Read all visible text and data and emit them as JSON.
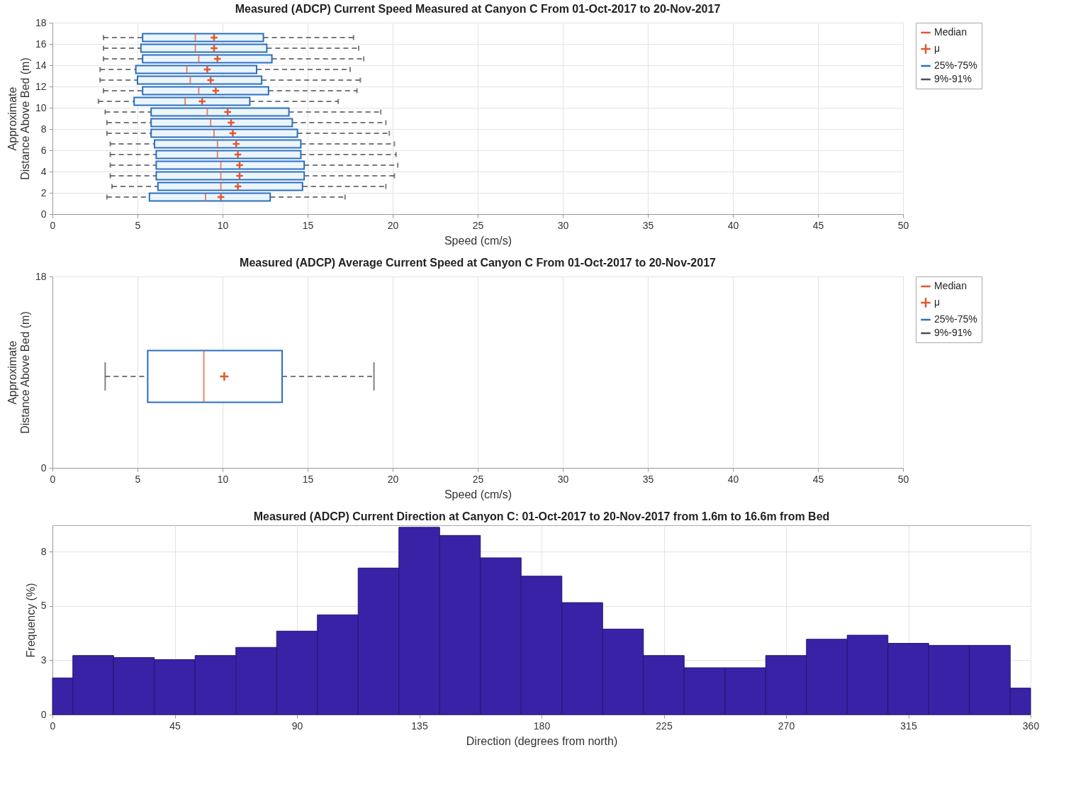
{
  "chart_data": [
    {
      "type": "box",
      "orientation": "horizontal",
      "title": "Measured (ADCP) Current Speed Measured at Canyon C From 01-Oct-2017 to 20-Nov-2017",
      "xlabel": "Speed (cm/s)",
      "ylabel": "Approximate\nDistance Above Bed (m)",
      "xlim": [
        0,
        50
      ],
      "xticks": [
        0,
        5,
        10,
        15,
        20,
        25,
        30,
        35,
        40,
        45,
        50
      ],
      "ylim": [
        0,
        18
      ],
      "yticks": [
        0,
        2,
        4,
        6,
        8,
        10,
        12,
        14,
        16,
        18
      ],
      "grid": true,
      "legend": "right",
      "annotations": [
        "Median",
        "μ",
        "9%-91%"
      ],
      "x": [
        16.6,
        15.6,
        14.6,
        13.6,
        12.6,
        11.6,
        10.6,
        9.6,
        8.6,
        7.6,
        6.6,
        5.6,
        4.6,
        3.6,
        2.6,
        1.6
      ],
      "series": [
        {
          "name": "25%-75%",
          "color": "#2b6fbf",
          "boxes": [
            {
              "low": 3.0,
              "q1": 5.3,
              "median": 8.4,
              "q3": 12.4,
              "high": 17.7,
              "mean": 9.5
            },
            {
              "low": 3.0,
              "q1": 5.2,
              "median": 8.4,
              "q3": 12.6,
              "high": 18.0,
              "mean": 9.5
            },
            {
              "low": 3.0,
              "q1": 5.3,
              "median": 8.6,
              "q3": 12.9,
              "high": 18.3,
              "mean": 9.7
            },
            {
              "low": 2.8,
              "q1": 4.9,
              "median": 7.9,
              "q3": 12.0,
              "high": 17.5,
              "mean": 9.1
            },
            {
              "low": 2.8,
              "q1": 5.0,
              "median": 8.1,
              "q3": 12.3,
              "high": 18.1,
              "mean": 9.3
            },
            {
              "low": 3.0,
              "q1": 5.3,
              "median": 8.6,
              "q3": 12.7,
              "high": 17.9,
              "mean": 9.6
            },
            {
              "low": 2.7,
              "q1": 4.8,
              "median": 7.8,
              "q3": 11.6,
              "high": 16.8,
              "mean": 8.8
            },
            {
              "low": 3.1,
              "q1": 5.8,
              "median": 9.1,
              "q3": 13.9,
              "high": 19.3,
              "mean": 10.3
            },
            {
              "low": 3.2,
              "q1": 5.8,
              "median": 9.3,
              "q3": 14.1,
              "high": 19.6,
              "mean": 10.5
            },
            {
              "low": 3.2,
              "q1": 5.8,
              "median": 9.5,
              "q3": 14.4,
              "high": 19.8,
              "mean": 10.6
            },
            {
              "low": 3.4,
              "q1": 6.0,
              "median": 9.7,
              "q3": 14.6,
              "high": 20.1,
              "mean": 10.8
            },
            {
              "low": 3.4,
              "q1": 6.1,
              "median": 9.7,
              "q3": 14.6,
              "high": 20.2,
              "mean": 10.9
            },
            {
              "low": 3.4,
              "q1": 6.1,
              "median": 9.9,
              "q3": 14.8,
              "high": 20.3,
              "mean": 11.0
            },
            {
              "low": 3.4,
              "q1": 6.1,
              "median": 9.9,
              "q3": 14.8,
              "high": 20.1,
              "mean": 11.0
            },
            {
              "low": 3.5,
              "q1": 6.2,
              "median": 9.9,
              "q3": 14.7,
              "high": 19.6,
              "mean": 10.9
            },
            {
              "low": 3.2,
              "q1": 5.7,
              "median": 9.0,
              "q3": 12.8,
              "high": 17.2,
              "mean": 9.9
            }
          ]
        }
      ]
    },
    {
      "type": "box",
      "orientation": "horizontal",
      "title": "Measured (ADCP) Average Current Speed at Canyon C From 01-Oct-2017 to 20-Nov-2017",
      "xlabel": "Speed (cm/s)",
      "ylabel": "Approximate\nDistance Above Bed (m)",
      "xlim": [
        0,
        50
      ],
      "xticks": [
        0,
        5,
        10,
        15,
        20,
        25,
        30,
        35,
        40,
        45,
        50
      ],
      "ylim": [
        0,
        18
      ],
      "yticks": [
        0,
        18
      ],
      "grid": true,
      "legend": "right",
      "annotations": [
        "Median",
        "μ",
        "9%-91%"
      ],
      "x": [
        8.6
      ],
      "series": [
        {
          "name": "25%-75%",
          "color": "#2b6fbf",
          "boxes": [
            {
              "low": 3.1,
              "q1": 5.6,
              "median": 8.9,
              "q3": 13.5,
              "high": 18.9,
              "mean": 10.1
            }
          ]
        }
      ]
    },
    {
      "type": "histogram",
      "title": "Measured (ADCP) Current Direction at Canyon C: 01-Oct-2017 to 20-Nov-2017 from 1.6m to 16.6m from Bed",
      "xlabel": "Direction (degrees from north)",
      "ylabel": "Frequency (%)",
      "color": "#3a22a6",
      "xlim": [
        0,
        360
      ],
      "xticks": [
        0,
        45,
        90,
        135,
        180,
        225,
        270,
        315,
        360
      ],
      "ylim": [
        0,
        9.3
      ],
      "yticks": [
        0,
        {
          "value": 2.67,
          "label": "3"
        },
        {
          "value": 5.33,
          "label": "5"
        },
        8
      ],
      "grid": true,
      "bins": [
        0,
        7.5,
        22.5,
        37.5,
        52.5,
        67.5,
        82.5,
        97.5,
        112.5,
        127.5,
        142.5,
        157.5,
        172.5,
        187.5,
        202.5,
        217.5,
        232.5,
        247.5,
        262.5,
        277.5,
        292.5,
        307.5,
        322.5,
        337.5,
        352.5,
        360
      ],
      "values": [
        1.8,
        2.9,
        2.8,
        2.7,
        2.9,
        3.3,
        4.1,
        4.9,
        7.2,
        9.2,
        8.8,
        7.7,
        6.8,
        5.5,
        4.2,
        2.9,
        2.3,
        2.3,
        2.9,
        3.7,
        3.9,
        3.5,
        3.4,
        3.4,
        1.3
      ]
    }
  ]
}
